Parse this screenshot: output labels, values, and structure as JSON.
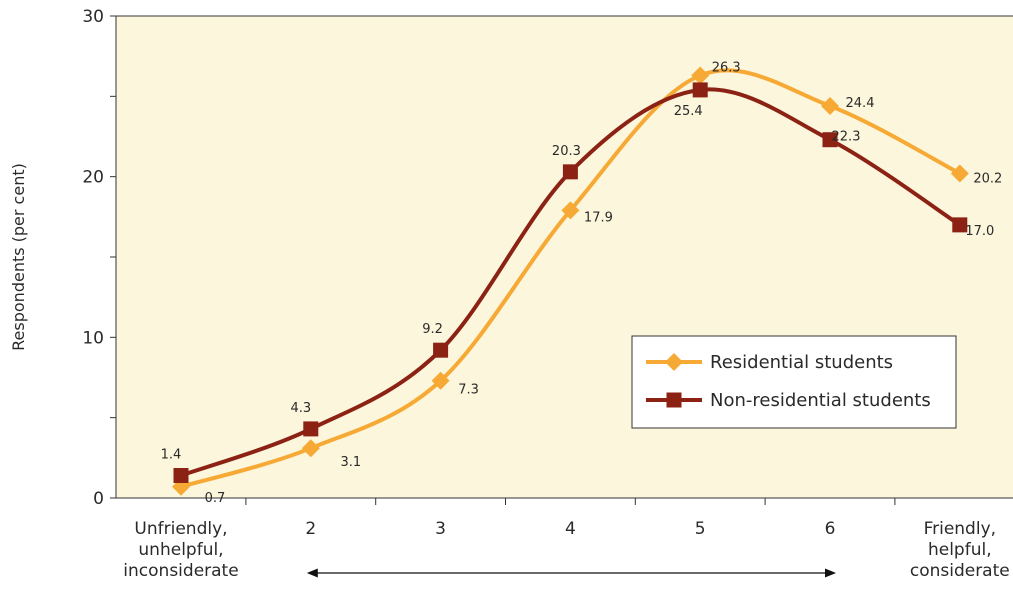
{
  "chart_data": {
    "type": "line",
    "title": "",
    "ylabel": "Respondents (per cent)",
    "xlabel": "",
    "ylim": [
      0,
      30
    ],
    "yticks": [
      0,
      10,
      20,
      30
    ],
    "grid": false,
    "legend_position": "right",
    "categories": [
      [
        "Unfriendly,",
        "unhelpful,",
        "inconsiderate"
      ],
      [
        "2"
      ],
      [
        "3"
      ],
      [
        "4"
      ],
      [
        "5"
      ],
      [
        "6"
      ],
      [
        "Friendly,",
        "helpful,",
        "considerate"
      ]
    ],
    "series": [
      {
        "name": "Residential students",
        "values": [
          0.7,
          3.1,
          7.3,
          17.9,
          26.3,
          24.4,
          20.2
        ],
        "labels": [
          "0.7",
          "3.1",
          "7.3",
          "17.9",
          "26.3",
          "24.4",
          "20.2"
        ],
        "color": "#F7A935",
        "marker": "diamond"
      },
      {
        "name": "Non-residential students",
        "values": [
          1.4,
          4.3,
          9.2,
          20.3,
          25.4,
          22.3,
          17.0
        ],
        "labels": [
          "1.4",
          "4.3",
          "9.2",
          "20.3",
          "25.4",
          "22.3",
          "17.0"
        ],
        "color": "#8B2214",
        "marker": "square"
      }
    ],
    "plot_background": "#FCF6DC",
    "scale_arrow": true
  }
}
